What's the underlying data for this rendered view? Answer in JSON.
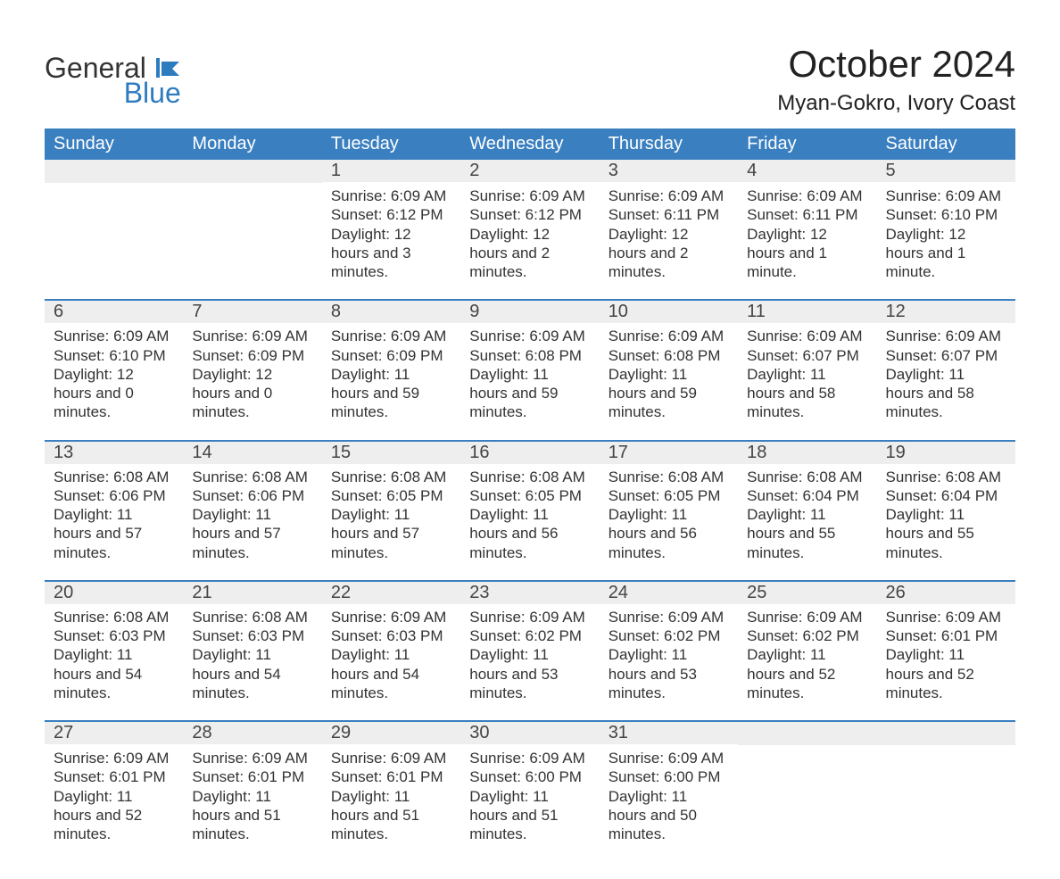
{
  "brand": {
    "name1": "General",
    "name2": "Blue",
    "icon_color": "#2e7cc0"
  },
  "title": "October 2024",
  "location": "Myan-Gokro, Ivory Coast",
  "colors": {
    "header_bg": "#3a7fc0",
    "header_text": "#ffffff",
    "daynum_bg": "#eeeeee",
    "separator": "#3a7fc0",
    "body_text": "#333333",
    "page_bg": "#ffffff"
  },
  "typography": {
    "title_fontsize": 42,
    "location_fontsize": 24,
    "header_fontsize": 20,
    "daynum_fontsize": 20,
    "detail_fontsize": 17
  },
  "dayHeaders": [
    "Sunday",
    "Monday",
    "Tuesday",
    "Wednesday",
    "Thursday",
    "Friday",
    "Saturday"
  ],
  "weeks": [
    [
      {
        "n": "",
        "sunrise": "",
        "sunset": "",
        "daylight": ""
      },
      {
        "n": "",
        "sunrise": "",
        "sunset": "",
        "daylight": ""
      },
      {
        "n": "1",
        "sunrise": "Sunrise: 6:09 AM",
        "sunset": "Sunset: 6:12 PM",
        "daylight": "Daylight: 12 hours and 3 minutes."
      },
      {
        "n": "2",
        "sunrise": "Sunrise: 6:09 AM",
        "sunset": "Sunset: 6:12 PM",
        "daylight": "Daylight: 12 hours and 2 minutes."
      },
      {
        "n": "3",
        "sunrise": "Sunrise: 6:09 AM",
        "sunset": "Sunset: 6:11 PM",
        "daylight": "Daylight: 12 hours and 2 minutes."
      },
      {
        "n": "4",
        "sunrise": "Sunrise: 6:09 AM",
        "sunset": "Sunset: 6:11 PM",
        "daylight": "Daylight: 12 hours and 1 minute."
      },
      {
        "n": "5",
        "sunrise": "Sunrise: 6:09 AM",
        "sunset": "Sunset: 6:10 PM",
        "daylight": "Daylight: 12 hours and 1 minute."
      }
    ],
    [
      {
        "n": "6",
        "sunrise": "Sunrise: 6:09 AM",
        "sunset": "Sunset: 6:10 PM",
        "daylight": "Daylight: 12 hours and 0 minutes."
      },
      {
        "n": "7",
        "sunrise": "Sunrise: 6:09 AM",
        "sunset": "Sunset: 6:09 PM",
        "daylight": "Daylight: 12 hours and 0 minutes."
      },
      {
        "n": "8",
        "sunrise": "Sunrise: 6:09 AM",
        "sunset": "Sunset: 6:09 PM",
        "daylight": "Daylight: 11 hours and 59 minutes."
      },
      {
        "n": "9",
        "sunrise": "Sunrise: 6:09 AM",
        "sunset": "Sunset: 6:08 PM",
        "daylight": "Daylight: 11 hours and 59 minutes."
      },
      {
        "n": "10",
        "sunrise": "Sunrise: 6:09 AM",
        "sunset": "Sunset: 6:08 PM",
        "daylight": "Daylight: 11 hours and 59 minutes."
      },
      {
        "n": "11",
        "sunrise": "Sunrise: 6:09 AM",
        "sunset": "Sunset: 6:07 PM",
        "daylight": "Daylight: 11 hours and 58 minutes."
      },
      {
        "n": "12",
        "sunrise": "Sunrise: 6:09 AM",
        "sunset": "Sunset: 6:07 PM",
        "daylight": "Daylight: 11 hours and 58 minutes."
      }
    ],
    [
      {
        "n": "13",
        "sunrise": "Sunrise: 6:08 AM",
        "sunset": "Sunset: 6:06 PM",
        "daylight": "Daylight: 11 hours and 57 minutes."
      },
      {
        "n": "14",
        "sunrise": "Sunrise: 6:08 AM",
        "sunset": "Sunset: 6:06 PM",
        "daylight": "Daylight: 11 hours and 57 minutes."
      },
      {
        "n": "15",
        "sunrise": "Sunrise: 6:08 AM",
        "sunset": "Sunset: 6:05 PM",
        "daylight": "Daylight: 11 hours and 57 minutes."
      },
      {
        "n": "16",
        "sunrise": "Sunrise: 6:08 AM",
        "sunset": "Sunset: 6:05 PM",
        "daylight": "Daylight: 11 hours and 56 minutes."
      },
      {
        "n": "17",
        "sunrise": "Sunrise: 6:08 AM",
        "sunset": "Sunset: 6:05 PM",
        "daylight": "Daylight: 11 hours and 56 minutes."
      },
      {
        "n": "18",
        "sunrise": "Sunrise: 6:08 AM",
        "sunset": "Sunset: 6:04 PM",
        "daylight": "Daylight: 11 hours and 55 minutes."
      },
      {
        "n": "19",
        "sunrise": "Sunrise: 6:08 AM",
        "sunset": "Sunset: 6:04 PM",
        "daylight": "Daylight: 11 hours and 55 minutes."
      }
    ],
    [
      {
        "n": "20",
        "sunrise": "Sunrise: 6:08 AM",
        "sunset": "Sunset: 6:03 PM",
        "daylight": "Daylight: 11 hours and 54 minutes."
      },
      {
        "n": "21",
        "sunrise": "Sunrise: 6:08 AM",
        "sunset": "Sunset: 6:03 PM",
        "daylight": "Daylight: 11 hours and 54 minutes."
      },
      {
        "n": "22",
        "sunrise": "Sunrise: 6:09 AM",
        "sunset": "Sunset: 6:03 PM",
        "daylight": "Daylight: 11 hours and 54 minutes."
      },
      {
        "n": "23",
        "sunrise": "Sunrise: 6:09 AM",
        "sunset": "Sunset: 6:02 PM",
        "daylight": "Daylight: 11 hours and 53 minutes."
      },
      {
        "n": "24",
        "sunrise": "Sunrise: 6:09 AM",
        "sunset": "Sunset: 6:02 PM",
        "daylight": "Daylight: 11 hours and 53 minutes."
      },
      {
        "n": "25",
        "sunrise": "Sunrise: 6:09 AM",
        "sunset": "Sunset: 6:02 PM",
        "daylight": "Daylight: 11 hours and 52 minutes."
      },
      {
        "n": "26",
        "sunrise": "Sunrise: 6:09 AM",
        "sunset": "Sunset: 6:01 PM",
        "daylight": "Daylight: 11 hours and 52 minutes."
      }
    ],
    [
      {
        "n": "27",
        "sunrise": "Sunrise: 6:09 AM",
        "sunset": "Sunset: 6:01 PM",
        "daylight": "Daylight: 11 hours and 52 minutes."
      },
      {
        "n": "28",
        "sunrise": "Sunrise: 6:09 AM",
        "sunset": "Sunset: 6:01 PM",
        "daylight": "Daylight: 11 hours and 51 minutes."
      },
      {
        "n": "29",
        "sunrise": "Sunrise: 6:09 AM",
        "sunset": "Sunset: 6:01 PM",
        "daylight": "Daylight: 11 hours and 51 minutes."
      },
      {
        "n": "30",
        "sunrise": "Sunrise: 6:09 AM",
        "sunset": "Sunset: 6:00 PM",
        "daylight": "Daylight: 11 hours and 51 minutes."
      },
      {
        "n": "31",
        "sunrise": "Sunrise: 6:09 AM",
        "sunset": "Sunset: 6:00 PM",
        "daylight": "Daylight: 11 hours and 50 minutes."
      },
      {
        "n": "",
        "sunrise": "",
        "sunset": "",
        "daylight": ""
      },
      {
        "n": "",
        "sunrise": "",
        "sunset": "",
        "daylight": ""
      }
    ]
  ]
}
